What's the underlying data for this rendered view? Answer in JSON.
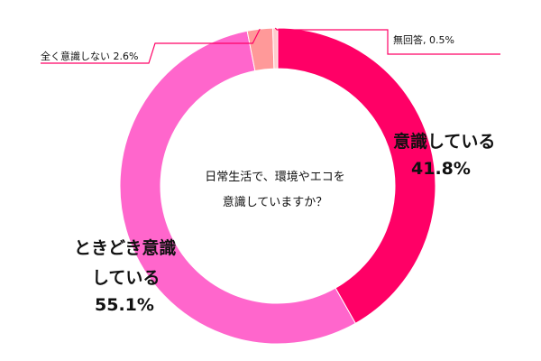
{
  "chart_data": {
    "type": "pie",
    "title": "日常生活で、環境やエコを\n意識していますか？",
    "title_lines": [
      "日常生活で、環境やエコを",
      "意識していますか？"
    ],
    "series": [
      {
        "name": "意識している",
        "value": 41.8,
        "value_label": "41.8%",
        "color": "#ff0066"
      },
      {
        "name": "ときどき意識している",
        "value": 55.1,
        "value_label": "55.1%",
        "color": "#ff66cc"
      },
      {
        "name": "全く意識しない",
        "value": 2.6,
        "value_label": "2.6%",
        "color": "#ff9999"
      },
      {
        "name": "無回答",
        "value": 0.5,
        "value_label": "0.5%",
        "color": "#ffcccc"
      }
    ],
    "label_texts": {
      "ishiki_line1": "意識している",
      "ishiki_value": "41.8%",
      "tokidoki_line1": "ときどき意識",
      "tokidoki_line2": "している",
      "tokidoki_value": "55.1%",
      "mattaku": "全く意識しない 2.6%",
      "muka": "無回答, 0.5%"
    },
    "leader_color": "#ff0066",
    "start_angle_deg": 0,
    "direction": "clockwise"
  }
}
